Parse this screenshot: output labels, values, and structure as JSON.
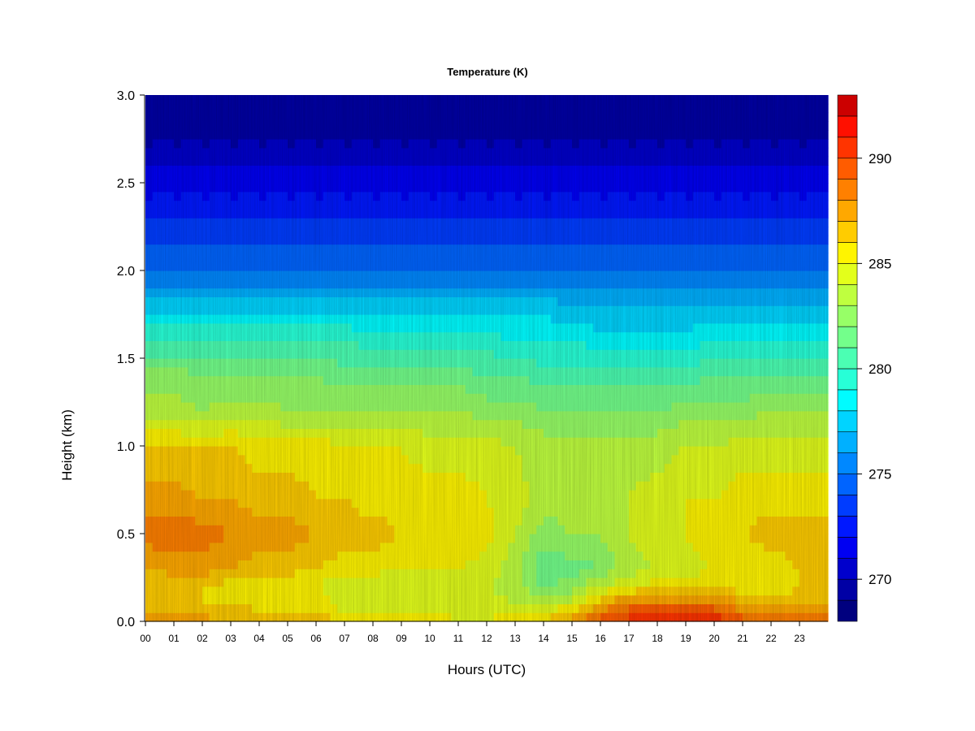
{
  "chart_data": {
    "type": "heatmap",
    "title": "Temperature (K)",
    "xlabel": "Hours (UTC)",
    "ylabel": "Height (km)",
    "xlim": [
      0,
      24
    ],
    "ylim": [
      0.0,
      3.0
    ],
    "x_ticks": [
      0,
      1,
      2,
      3,
      4,
      5,
      6,
      7,
      8,
      9,
      10,
      11,
      12,
      13,
      14,
      15,
      16,
      17,
      18,
      19,
      20,
      21,
      22,
      23
    ],
    "x_tick_labels": [
      "00",
      "01",
      "02",
      "03",
      "04",
      "05",
      "06",
      "07",
      "08",
      "09",
      "10",
      "11",
      "12",
      "13",
      "14",
      "15",
      "16",
      "17",
      "18",
      "19",
      "20",
      "21",
      "22",
      "23"
    ],
    "y_ticks": [
      0.0,
      0.5,
      1.0,
      1.5,
      2.0,
      2.5,
      3.0
    ],
    "y_tick_labels": [
      "0.0",
      "0.5",
      "1.0",
      "1.5",
      "2.0",
      "2.5",
      "3.0"
    ],
    "colorbar": {
      "min": 268,
      "max": 293,
      "step": 1,
      "ticks": [
        270,
        275,
        280,
        285,
        290
      ],
      "tick_labels": [
        "270",
        "275",
        "280",
        "285",
        "290"
      ],
      "colors": [
        "#00007f",
        "#0000a5",
        "#0000cc",
        "#0000f2",
        "#0018ff",
        "#003cff",
        "#0064ff",
        "#0088ff",
        "#00b0ff",
        "#00d4ff",
        "#00fcff",
        "#27ffd7",
        "#4bffb3",
        "#73ff8b",
        "#97ff67",
        "#bfff3f",
        "#e3ff1b",
        "#fff400",
        "#ffcc00",
        "#ffa800",
        "#ff8000",
        "#ff5c00",
        "#ff3400",
        "#ff1000",
        "#cc0000",
        "#7f0000"
      ]
    },
    "x_hours": [
      0,
      1,
      2,
      3,
      4,
      5,
      6,
      7,
      8,
      9,
      10,
      11,
      12,
      13,
      14,
      15,
      16,
      17,
      18,
      19,
      20,
      21,
      22,
      23,
      24
    ],
    "y_km": [
      0.0,
      0.1,
      0.2,
      0.3,
      0.5,
      0.7,
      1.0,
      1.2,
      1.4,
      1.6,
      1.8,
      2.0,
      2.2,
      2.5,
      2.8,
      3.0
    ],
    "values_K": [
      [
        288.0,
        286.5,
        286.0,
        287.0,
        288.5,
        287.5,
        286.0,
        283.5,
        282.5,
        280.0,
        277.5,
        275.0,
        273.5,
        271.5,
        269.5,
        269.0
      ],
      [
        287.5,
        286.0,
        286.0,
        287.5,
        288.5,
        287.5,
        286.0,
        283.5,
        282.5,
        280.0,
        277.5,
        275.0,
        273.5,
        271.5,
        269.5,
        269.0
      ],
      [
        287.5,
        286.0,
        286.0,
        287.5,
        288.5,
        287.0,
        286.0,
        283.0,
        282.0,
        280.0,
        277.5,
        275.0,
        273.5,
        271.5,
        269.5,
        269.0
      ],
      [
        287.0,
        286.0,
        285.5,
        287.0,
        288.0,
        287.0,
        286.0,
        283.5,
        282.0,
        280.0,
        277.5,
        275.0,
        273.5,
        271.5,
        269.5,
        269.0
      ],
      [
        287.0,
        285.5,
        285.5,
        286.5,
        287.5,
        286.5,
        285.5,
        283.5,
        282.0,
        280.0,
        277.5,
        275.0,
        273.5,
        271.5,
        269.5,
        269.0
      ],
      [
        286.5,
        285.5,
        285.0,
        286.5,
        287.5,
        286.5,
        285.5,
        283.0,
        282.0,
        280.0,
        277.5,
        275.0,
        273.5,
        271.5,
        269.5,
        269.0
      ],
      [
        286.5,
        285.5,
        285.0,
        286.0,
        287.0,
        286.0,
        285.5,
        283.0,
        282.0,
        280.0,
        277.5,
        275.0,
        273.5,
        271.5,
        269.5,
        269.0
      ],
      [
        286.0,
        284.5,
        284.0,
        285.5,
        286.5,
        286.0,
        285.0,
        283.0,
        281.5,
        280.0,
        277.5,
        275.0,
        273.5,
        271.5,
        269.5,
        269.0
      ],
      [
        286.0,
        284.5,
        284.0,
        285.5,
        286.5,
        285.5,
        285.0,
        283.0,
        281.5,
        279.5,
        277.5,
        275.0,
        273.5,
        271.5,
        269.5,
        269.0
      ],
      [
        285.5,
        284.5,
        284.0,
        285.0,
        286.0,
        285.5,
        285.0,
        283.0,
        281.5,
        279.5,
        277.5,
        275.0,
        273.5,
        271.5,
        269.5,
        269.0
      ],
      [
        285.5,
        284.5,
        284.0,
        285.0,
        286.0,
        285.5,
        284.5,
        283.0,
        281.5,
        279.5,
        277.5,
        275.0,
        273.5,
        271.5,
        269.5,
        269.0
      ],
      [
        285.0,
        284.5,
        284.0,
        285.0,
        286.0,
        285.5,
        284.5,
        283.0,
        281.5,
        279.5,
        277.5,
        275.0,
        273.5,
        271.5,
        269.5,
        269.0
      ],
      [
        285.0,
        284.5,
        284.0,
        284.5,
        285.5,
        285.0,
        284.5,
        282.5,
        281.0,
        279.5,
        277.5,
        275.0,
        273.5,
        271.5,
        269.5,
        269.0
      ],
      [
        286.0,
        284.0,
        283.5,
        283.5,
        284.0,
        284.5,
        284.0,
        282.5,
        281.0,
        279.0,
        277.5,
        275.0,
        273.5,
        271.5,
        269.5,
        269.0
      ],
      [
        286.5,
        284.0,
        282.0,
        281.0,
        282.5,
        283.5,
        283.5,
        282.0,
        280.5,
        279.0,
        277.5,
        275.0,
        273.5,
        271.5,
        269.5,
        269.0
      ],
      [
        287.5,
        284.5,
        282.5,
        281.5,
        283.0,
        283.5,
        283.5,
        282.0,
        280.5,
        279.0,
        277.0,
        275.0,
        273.5,
        271.5,
        269.5,
        269.0
      ],
      [
        289.5,
        287.0,
        284.0,
        282.0,
        283.0,
        283.5,
        283.5,
        282.0,
        280.5,
        278.5,
        277.0,
        275.0,
        273.5,
        271.5,
        269.5,
        269.0
      ],
      [
        290.5,
        288.5,
        285.0,
        283.5,
        284.0,
        284.0,
        283.5,
        282.0,
        280.5,
        278.5,
        277.0,
        275.0,
        273.5,
        271.5,
        269.5,
        269.0
      ],
      [
        290.5,
        288.5,
        285.5,
        284.0,
        284.5,
        284.5,
        283.5,
        282.0,
        280.5,
        278.5,
        277.0,
        275.0,
        273.5,
        271.5,
        269.5,
        269.0
      ],
      [
        291.0,
        288.5,
        285.5,
        284.5,
        285.0,
        285.0,
        284.0,
        282.5,
        280.5,
        278.5,
        277.0,
        275.0,
        273.5,
        271.5,
        269.5,
        269.0
      ],
      [
        291.0,
        288.5,
        286.0,
        285.0,
        285.5,
        285.0,
        284.0,
        282.5,
        281.0,
        279.0,
        277.0,
        275.0,
        273.5,
        271.5,
        269.5,
        269.0
      ],
      [
        289.5,
        287.0,
        285.5,
        285.0,
        286.0,
        285.5,
        284.5,
        282.5,
        281.0,
        279.0,
        277.0,
        275.0,
        273.5,
        271.5,
        269.5,
        269.0
      ],
      [
        288.5,
        286.5,
        285.5,
        285.5,
        286.5,
        285.5,
        284.5,
        283.0,
        281.0,
        279.0,
        277.0,
        275.0,
        273.5,
        271.5,
        269.5,
        269.0
      ],
      [
        289.0,
        286.5,
        286.0,
        286.0,
        286.5,
        285.5,
        284.5,
        283.0,
        281.0,
        279.0,
        277.0,
        275.0,
        273.5,
        271.5,
        269.5,
        269.0
      ],
      [
        289.0,
        286.5,
        286.0,
        286.0,
        286.5,
        285.5,
        284.5,
        283.0,
        281.0,
        279.0,
        277.0,
        275.0,
        273.5,
        271.5,
        269.5,
        269.0
      ]
    ]
  }
}
